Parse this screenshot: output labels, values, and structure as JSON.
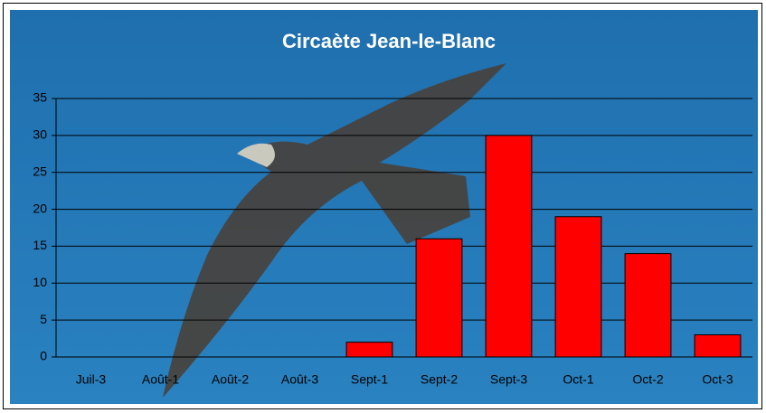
{
  "chart_data": {
    "type": "bar",
    "title": "Circaète Jean-le-Blanc",
    "categories": [
      "Juil-3",
      "Août-1",
      "Août-2",
      "Août-3",
      "Sept-1",
      "Sept-2",
      "Sept-3",
      "Oct-1",
      "Oct-2",
      "Oct-3"
    ],
    "values": [
      0,
      0,
      0,
      0,
      2,
      16,
      30,
      19,
      14,
      3
    ],
    "color": "#ff0000",
    "ylim": [
      0,
      35
    ],
    "yticks": [
      0,
      5,
      10,
      15,
      20,
      25,
      30,
      35
    ],
    "grid": true
  }
}
